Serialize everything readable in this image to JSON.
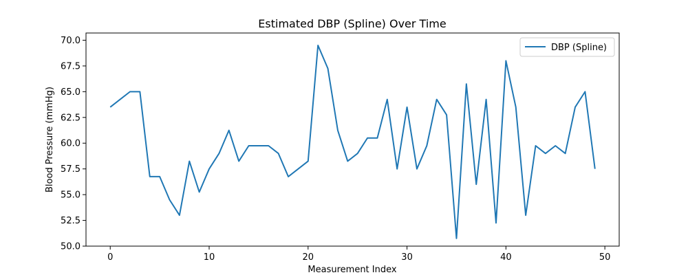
{
  "chart_data": {
    "type": "line",
    "title": "Estimated DBP (Spline) Over Time",
    "xlabel": "Measurement Index",
    "ylabel": "Blood Pressure (mmHg)",
    "xlim": [
      -2.45,
      51.45
    ],
    "ylim": [
      50.0,
      70.7
    ],
    "xticks": [
      0,
      10,
      20,
      30,
      40,
      50
    ],
    "yticks": [
      50.0,
      52.5,
      55.0,
      57.5,
      60.0,
      62.5,
      65.0,
      67.5,
      70.0
    ],
    "ytick_labels": [
      "50.0",
      "52.5",
      "55.0",
      "57.5",
      "60.0",
      "62.5",
      "65.0",
      "67.5",
      "70.0"
    ],
    "grid": false,
    "legend_position": "top-right",
    "series": [
      {
        "name": "DBP (Spline)",
        "color": "#1f77b4",
        "x": [
          0,
          1,
          2,
          3,
          4,
          5,
          6,
          7,
          8,
          9,
          10,
          11,
          12,
          13,
          14,
          15,
          16,
          17,
          18,
          19,
          20,
          21,
          22,
          23,
          24,
          25,
          26,
          27,
          28,
          29,
          30,
          31,
          32,
          33,
          34,
          35,
          36,
          37,
          38,
          39,
          40,
          41,
          42,
          43,
          44,
          45,
          46,
          47,
          48,
          49
        ],
        "values": [
          63.5,
          64.25,
          65.0,
          65.0,
          56.75,
          56.75,
          54.5,
          53.0,
          58.25,
          55.25,
          57.5,
          59.0,
          61.25,
          58.25,
          59.75,
          59.75,
          59.75,
          59.0,
          56.75,
          57.5,
          58.25,
          69.5,
          67.25,
          61.25,
          58.25,
          59.0,
          60.5,
          60.5,
          64.25,
          57.5,
          63.5,
          57.5,
          59.75,
          64.25,
          62.75,
          50.75,
          65.75,
          56.0,
          64.25,
          52.25,
          68.0,
          63.5,
          53.0,
          59.75,
          59.0,
          59.75,
          59.0,
          63.5,
          65.0,
          57.5
        ]
      }
    ]
  }
}
